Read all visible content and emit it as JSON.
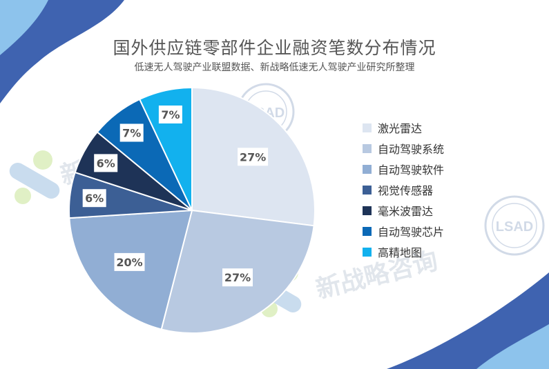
{
  "title": "国外供应链零部件企业融资笔数分布情况",
  "subtitle": "低速无人驾驶产业联盟数据、新战略低速无人驾驶产业研究所整理",
  "watermark": {
    "brand_text": "新战略咨询",
    "seal_text": "LSAD"
  },
  "chart_data": {
    "type": "pie",
    "title": "国外供应链零部件企业融资笔数分布情况",
    "subtitle": "低速无人驾驶产业联盟数据、新战略低速无人驾驶产业研究所整理",
    "legend_position": "right",
    "start": "12 o'clock, clockwise",
    "slices": [
      {
        "label": "激光雷达",
        "value": 27,
        "display": "27%",
        "color": "#dde5f1"
      },
      {
        "label": "自动驾驶系统",
        "value": 27,
        "display": "27%",
        "color": "#b8c9e1"
      },
      {
        "label": "自动驾驶软件",
        "value": 20,
        "display": "20%",
        "color": "#91aed4"
      },
      {
        "label": "视觉传感器",
        "value": 6,
        "display": "6%",
        "color": "#3c5f95"
      },
      {
        "label": "毫米波雷达",
        "value": 6,
        "display": "6%",
        "color": "#1e3357"
      },
      {
        "label": "自动驾驶芯片",
        "value": 7,
        "display": "7%",
        "color": "#0b69b6"
      },
      {
        "label": "高精地图",
        "value": 7,
        "display": "7%",
        "color": "#12b1ee"
      }
    ]
  }
}
